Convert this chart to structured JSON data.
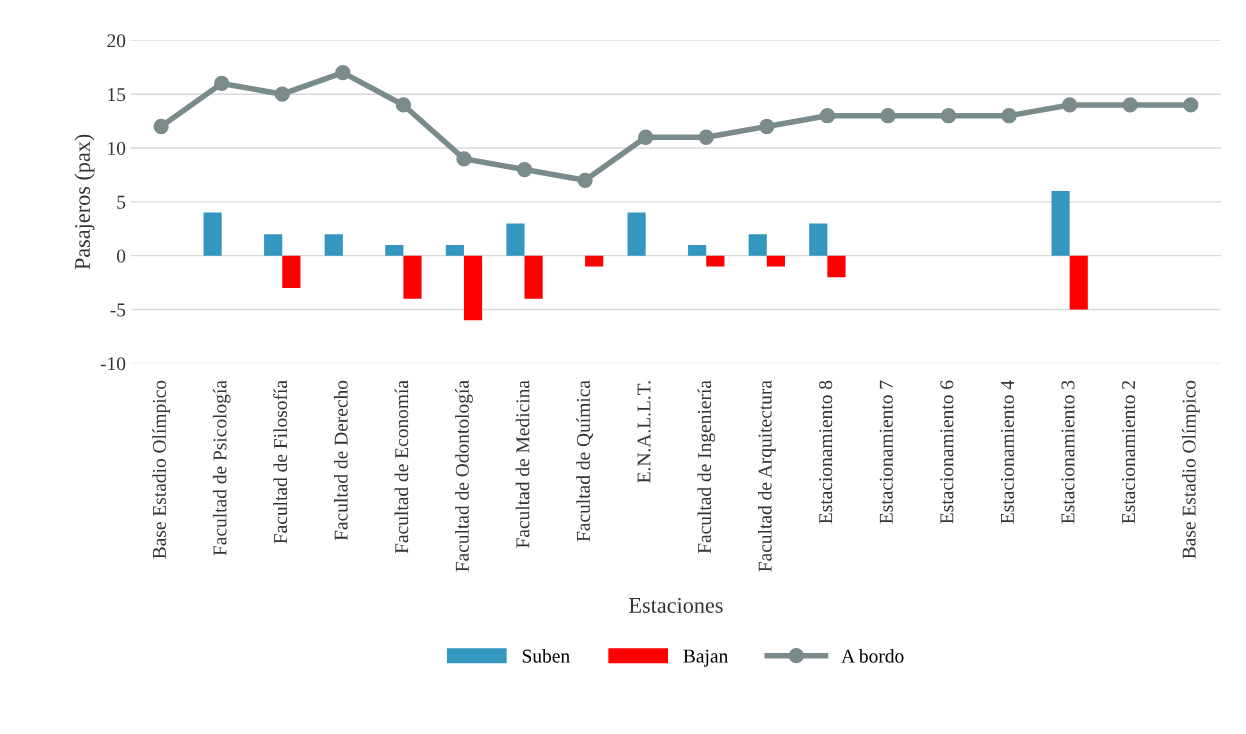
{
  "chart_data": {
    "type": "bar",
    "xlabel": "Estaciones",
    "ylabel": "Pasajeros (pax)",
    "categories": [
      "Base Estadio Olímpico",
      "Facultad de Psicología",
      "Facultad de Filosofía",
      "Facultad de Derecho",
      "Facultad de Economía",
      "Facultad de Odontología",
      "Facultad de Medicina",
      "Facultad de Química",
      "E.N.A.L.L.T.",
      "Facultad de Ingeniería",
      "Facultad de Arquitectura",
      "Estacionamiento 8",
      "Estacionamiento 7",
      "Estacionamiento 6",
      "Estacionamiento 4",
      "Estacionamiento 3",
      "Estacionamiento 2",
      "Base Estadio Olímpico"
    ],
    "series": [
      {
        "name": "Suben",
        "color": "#3497c0",
        "values": [
          null,
          4,
          2,
          2,
          1,
          1,
          3,
          null,
          4,
          1,
          2,
          3,
          null,
          null,
          null,
          6,
          null,
          null
        ]
      },
      {
        "name": "Bajan",
        "color": "#ff0000",
        "values": [
          null,
          null,
          -3,
          null,
          -4,
          -6,
          -4,
          -1,
          null,
          -1,
          -1,
          -2,
          null,
          null,
          null,
          -5,
          null,
          null
        ]
      },
      {
        "name": "A bordo",
        "type": "line",
        "color": "#7a8b8b",
        "marker": "circle",
        "values": [
          12,
          16,
          15,
          17,
          14,
          9,
          8,
          7,
          11,
          11,
          12,
          13,
          13,
          13,
          13,
          14,
          14,
          14
        ]
      }
    ],
    "ylim": [
      -10,
      20
    ],
    "yticks": [
      -10,
      -5,
      0,
      5,
      10,
      15,
      20
    ],
    "grid": "y",
    "legend": "bottom"
  }
}
